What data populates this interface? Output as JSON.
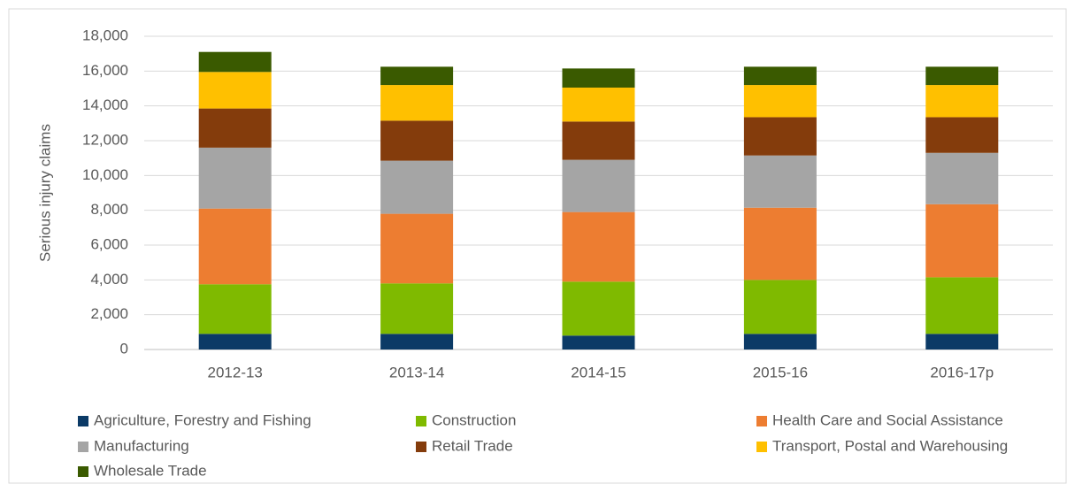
{
  "chart_data": {
    "type": "stacked_bar",
    "y_label": "Serious injury claims",
    "categories": [
      "2012-13",
      "2013-14",
      "2014-15",
      "2015-16",
      "2016-17p"
    ],
    "series": [
      {
        "name": "Agriculture, Forestry and Fishing",
        "color": "#0b3a66",
        "values": [
          900,
          900,
          800,
          900,
          900
        ]
      },
      {
        "name": "Construction",
        "color": "#7fba00",
        "values": [
          2850,
          2900,
          3100,
          3100,
          3250
        ]
      },
      {
        "name": "Health Care and Social Assistance",
        "color": "#ed7d31",
        "values": [
          4350,
          4000,
          4000,
          4150,
          4200
        ]
      },
      {
        "name": "Manufacturing",
        "color": "#a5a5a5",
        "values": [
          3500,
          3050,
          3000,
          3000,
          2950
        ]
      },
      {
        "name": "Retail Trade",
        "color": "#843c0c",
        "values": [
          2250,
          2300,
          2200,
          2200,
          2050
        ]
      },
      {
        "name": "Transport, Postal and Warehousing",
        "color": "#ffc000",
        "values": [
          2100,
          2050,
          1950,
          1850,
          1850
        ]
      },
      {
        "name": "Wholesale Trade",
        "color": "#3a5a00",
        "values": [
          1150,
          1050,
          1100,
          1050,
          1050
        ]
      }
    ],
    "ylim": [
      0,
      18000
    ],
    "yticks": [
      0,
      {
        "value": 2000,
        "label": "2,000"
      },
      {
        "value": 4000,
        "label": "4,000"
      },
      {
        "value": 6000,
        "label": "6,000"
      },
      {
        "value": 8000,
        "label": "8,000"
      },
      {
        "value": 10000,
        "label": "10,000"
      },
      {
        "value": 12000,
        "label": "12,000"
      },
      {
        "value": 14000,
        "label": "14,000"
      },
      {
        "value": 16000,
        "label": "16,000"
      },
      {
        "value": 18000,
        "label": "18,000"
      }
    ],
    "grid": true
  }
}
